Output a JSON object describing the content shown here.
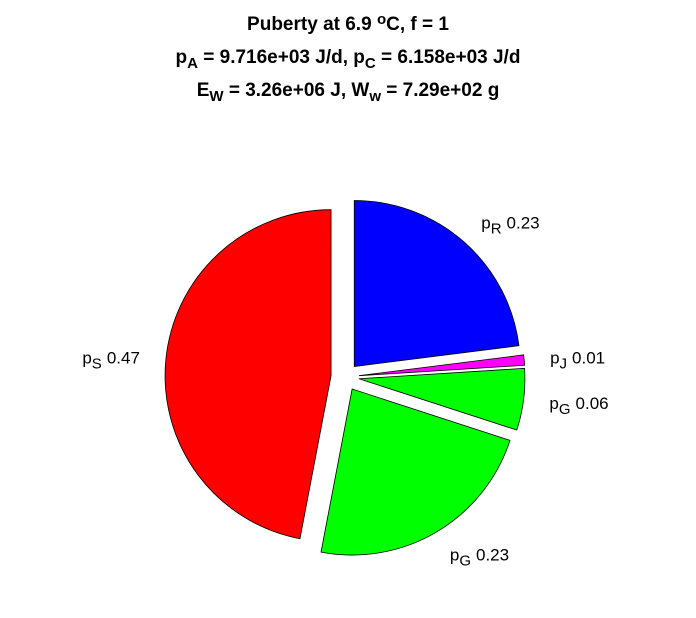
{
  "chart_data": {
    "type": "pie",
    "title_lines": [
      [
        {
          "text": "Puberty at 6.9 "
        },
        {
          "sup": "o"
        },
        {
          "text": "C, f = 1"
        }
      ],
      [
        {
          "text": "p"
        },
        {
          "sub": "A"
        },
        {
          "text": " = 9.716e+03 J/d,  p"
        },
        {
          "sub": "C"
        },
        {
          "text": " = 6.158e+03 J/d"
        }
      ],
      [
        {
          "text": "E"
        },
        {
          "sub": "W"
        },
        {
          "text": " = 3.26e+06 J, W"
        },
        {
          "sub": "w"
        },
        {
          "text": " = 7.29e+02 g"
        }
      ]
    ],
    "labels": [
      {
        "base": "p",
        "sub": "R"
      },
      {
        "base": "p",
        "sub": "J"
      },
      {
        "base": "p",
        "sub": "G"
      },
      {
        "base": "p",
        "sub": "G"
      },
      {
        "base": "p",
        "sub": "S"
      }
    ],
    "values": [
      0.23,
      0.01,
      0.06,
      0.23,
      0.47
    ],
    "colors": [
      "#0000ff",
      "#ff00ff",
      "#00ff00",
      "#00ff00",
      "#ff0000"
    ],
    "exploded": true
  }
}
